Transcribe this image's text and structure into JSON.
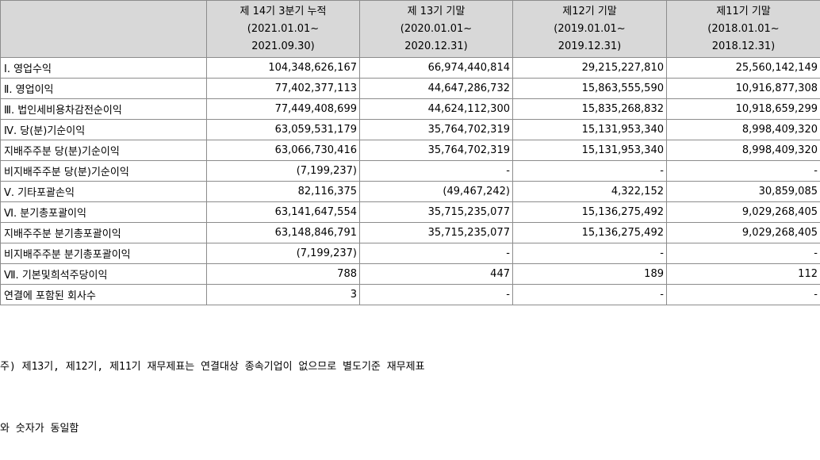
{
  "headers": [
    {
      "line1": "제 14기 3분기 누적",
      "line2": "(2021.01.01~",
      "line3": "2021.09.30)"
    },
    {
      "line1": "제 13기 기말",
      "line2": "(2020.01.01~",
      "line3": "2020.12.31)"
    },
    {
      "line1": "제12기 기말",
      "line2": "(2019.01.01~",
      "line3": "2019.12.31)"
    },
    {
      "line1": "제11기 기말",
      "line2": "(2018.01.01~",
      "line3": "2018.12.31)"
    }
  ],
  "rows": [
    {
      "label": "Ⅰ. 영업수익",
      "values": [
        "104,348,626,167",
        "66,974,440,814",
        "29,215,227,810",
        "25,560,142,149"
      ]
    },
    {
      "label": "Ⅱ. 영업이익",
      "values": [
        "77,402,377,113",
        "44,647,286,732",
        "15,863,555,590",
        "10,916,877,308"
      ]
    },
    {
      "label": "Ⅲ. 법인세비용차감전순이익",
      "values": [
        "77,449,408,699",
        "44,624,112,300",
        "15,835,268,832",
        "10,918,659,299"
      ]
    },
    {
      "label": "Ⅳ. 당(분)기순이익",
      "values": [
        "63,059,531,179",
        "35,764,702,319",
        "15,131,953,340",
        "8,998,409,320"
      ]
    },
    {
      "label": "지배주주분 당(분)기순이익",
      "values": [
        "63,066,730,416",
        "35,764,702,319",
        "15,131,953,340",
        "8,998,409,320"
      ]
    },
    {
      "label": "비지배주주분 당(분)기순이익",
      "values": [
        "(7,199,237)",
        "-",
        "-",
        "-"
      ]
    },
    {
      "label": "Ⅴ. 기타포괄손익",
      "values": [
        "82,116,375",
        "(49,467,242)",
        "4,322,152",
        "30,859,085"
      ]
    },
    {
      "label": "Ⅵ. 분기총포괄이익",
      "values": [
        "63,141,647,554",
        "35,715,235,077",
        "15,136,275,492",
        "9,029,268,405"
      ]
    },
    {
      "label": "지배주주분 분기총포괄이익",
      "values": [
        "63,148,846,791",
        "35,715,235,077",
        "15,136,275,492",
        "9,029,268,405"
      ]
    },
    {
      "label": "비지배주주분 분기총포괄이익",
      "values": [
        "(7,199,237)",
        "-",
        "-",
        "-"
      ]
    },
    {
      "label": "Ⅶ. 기본및희석주당이익",
      "values": [
        "788",
        "447",
        "189",
        "112"
      ]
    },
    {
      "label": "연결에 포함된 회사수",
      "values": [
        "3",
        "-",
        "-",
        "-"
      ]
    }
  ],
  "footnote": {
    "line1": "주) 제13기, 제12기, 제11기 재무제표는 연결대상 종속기업이 없으므로 별도기준 재무제표",
    "line2": "와 숫자가 동일함"
  }
}
